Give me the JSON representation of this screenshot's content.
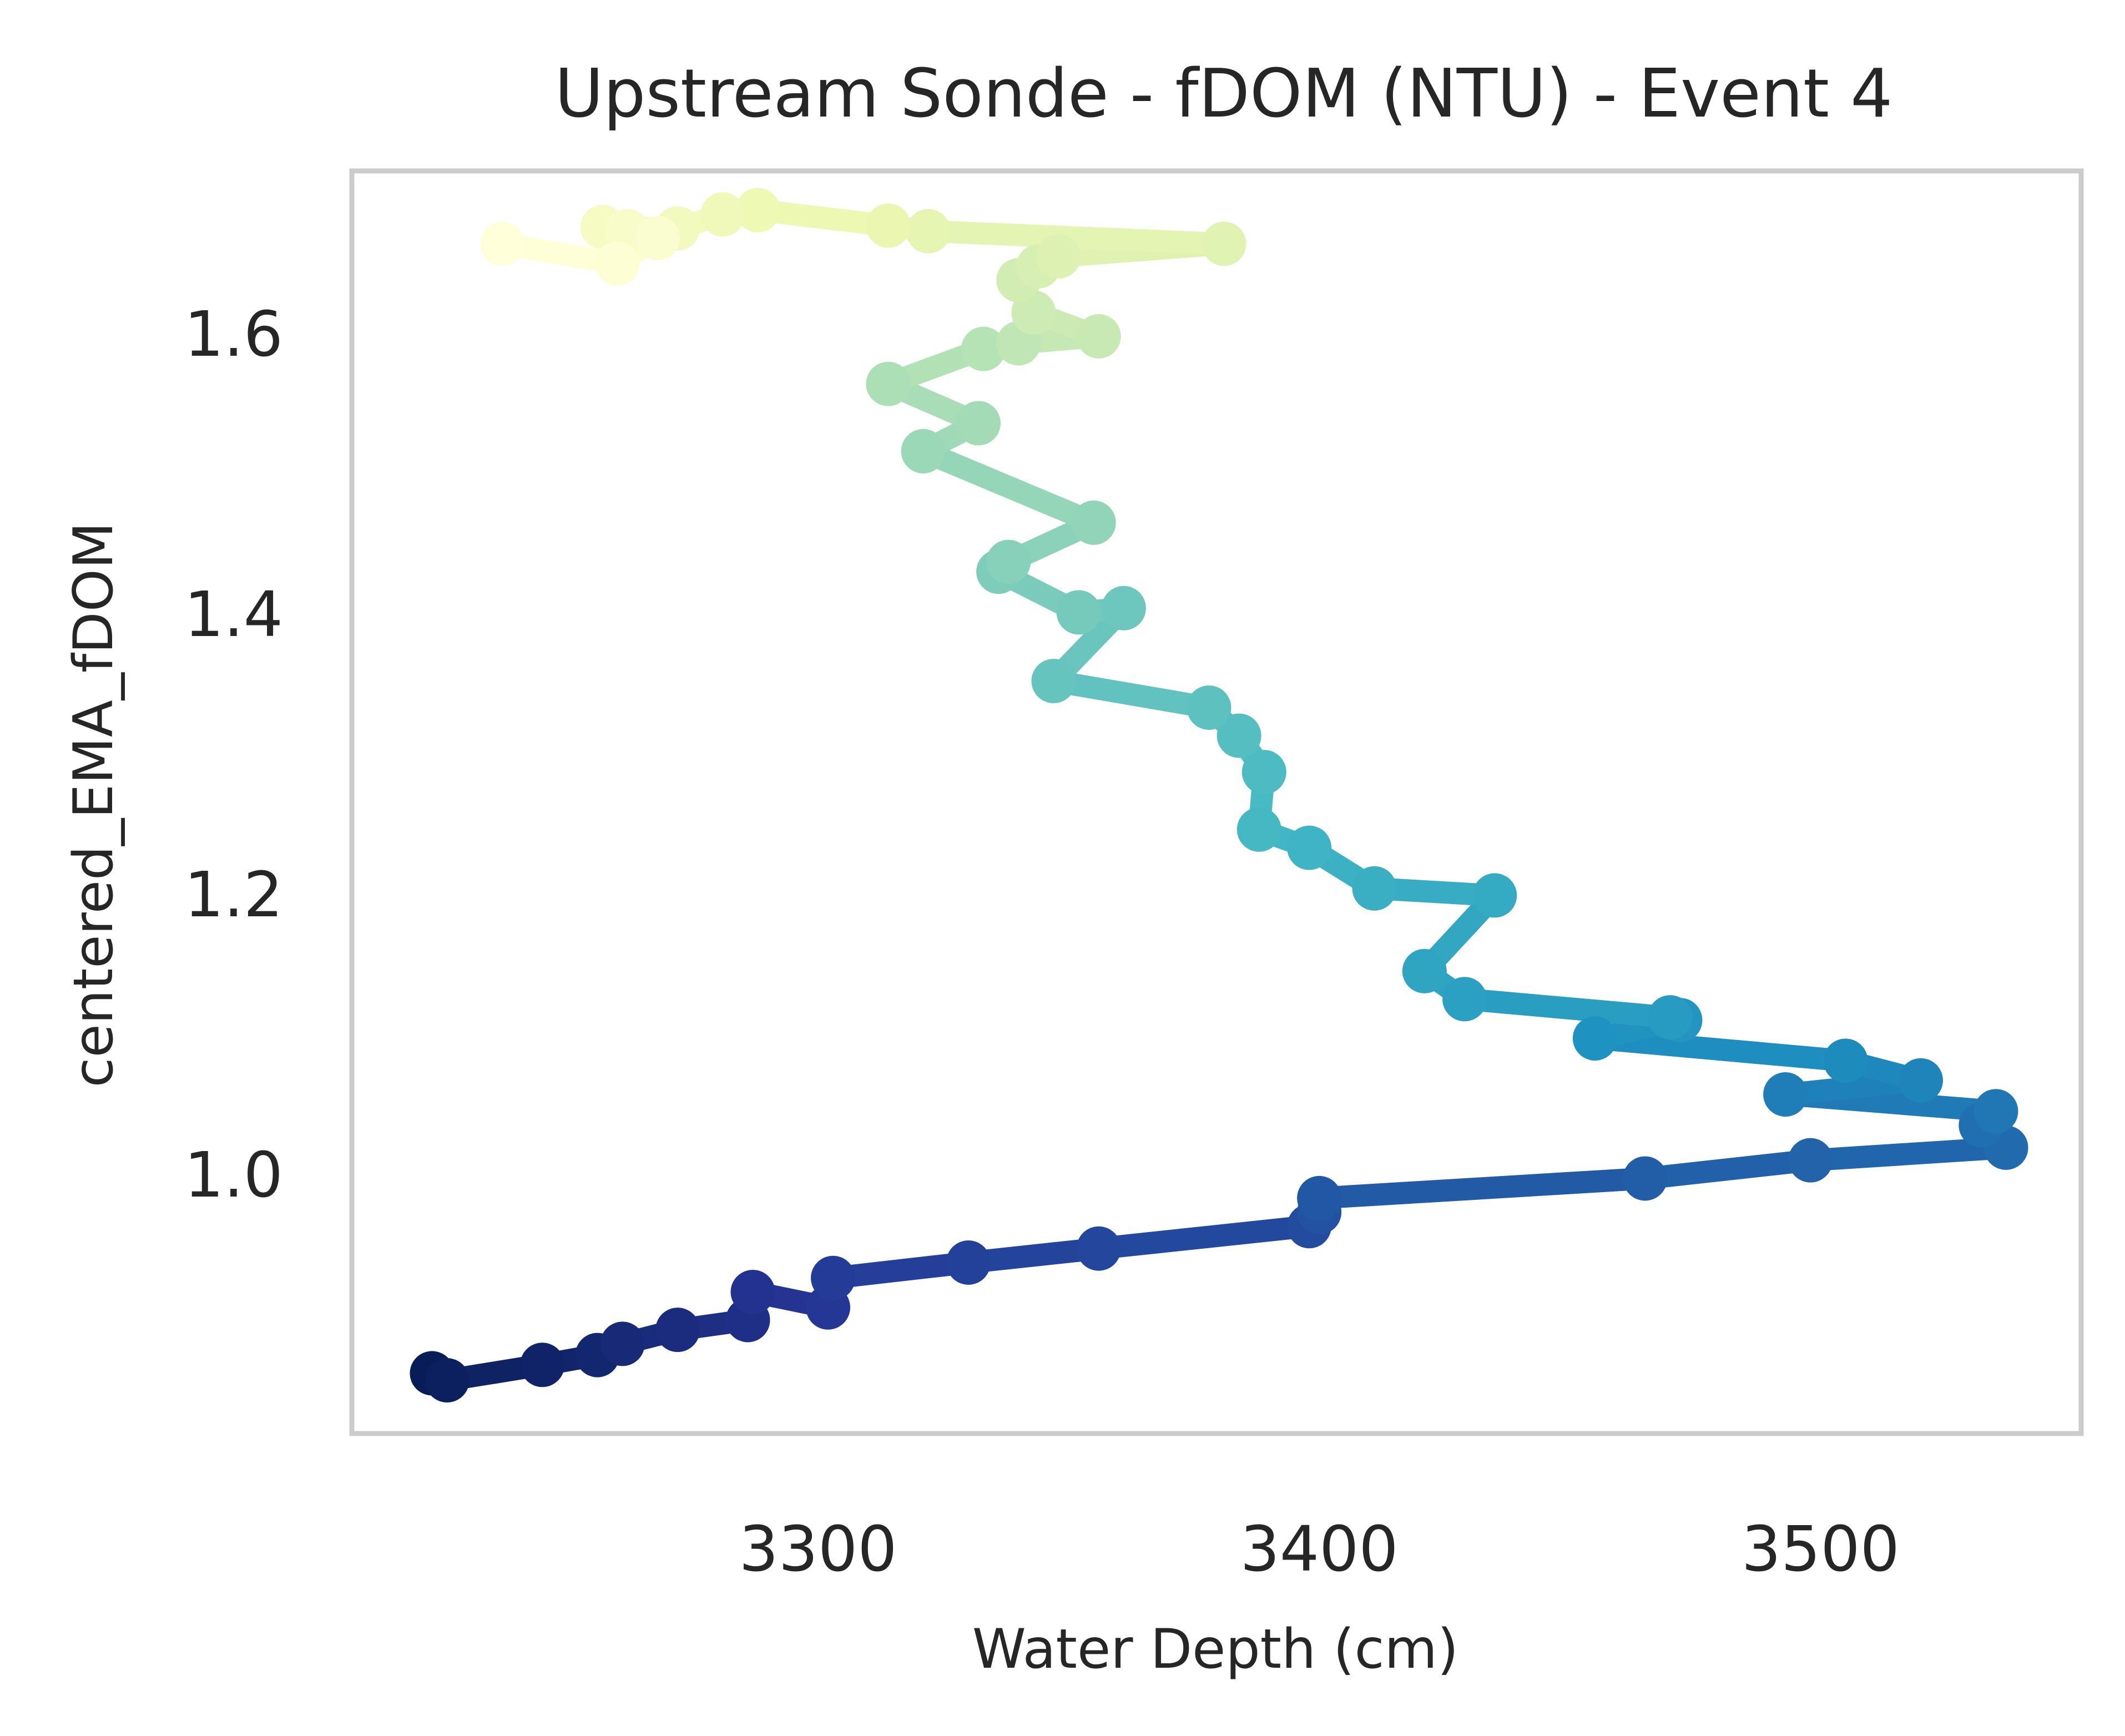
{
  "chart_data": {
    "type": "line",
    "title": "Upstream Sonde - fDOM (NTU) - Event 4",
    "xlabel": "Water Depth (cm)",
    "ylabel": "centered_EMA_fDOM",
    "xlim": [
      3207,
      3552
    ],
    "ylim": [
      0.815,
      1.716
    ],
    "xticks": [
      3300,
      3400,
      3500
    ],
    "yticks": [
      1.0,
      1.2,
      1.4,
      1.6
    ],
    "xtick_labels": [
      "3300",
      "3400",
      "3500"
    ],
    "ytick_labels": [
      "1.0",
      "1.2",
      "1.4",
      "1.6"
    ],
    "grid": false,
    "legend": "none",
    "marker": "circle",
    "colormap": "YlGnBu",
    "color_stops": [
      "#081d58",
      "#253494",
      "#225ea8",
      "#1d91c0",
      "#41b6c4",
      "#7fcdbb",
      "#c7e9b4",
      "#edf8b1",
      "#ffffd9"
    ],
    "series": [
      {
        "x": [
          3223,
          3226,
          3245,
          3256,
          3261,
          3272,
          3286,
          3287,
          3302,
          3303,
          3330,
          3356,
          3398,
          3400,
          3400,
          3465,
          3498,
          3537,
          3532,
          3535,
          3493,
          3520,
          3505,
          3455,
          3472,
          3470,
          3429,
          3421,
          3435,
          3411,
          3398,
          3388,
          3389,
          3384,
          3378,
          3347,
          3361,
          3352,
          3336,
          3338,
          3355,
          3321,
          3332,
          3314,
          3333,
          3340,
          3356,
          3343,
          3340,
          3344,
          3348,
          3381,
          3322,
          3314,
          3288,
          3281,
          3272,
          3257,
          3262,
          3268,
          3260,
          3237
        ],
        "y": [
          0.858,
          0.853,
          0.864,
          0.871,
          0.879,
          0.889,
          0.896,
          0.916,
          0.905,
          0.926,
          0.937,
          0.947,
          0.963,
          0.973,
          0.983,
          0.997,
          1.01,
          1.019,
          1.035,
          1.045,
          1.057,
          1.067,
          1.081,
          1.097,
          1.11,
          1.112,
          1.125,
          1.145,
          1.199,
          1.204,
          1.233,
          1.246,
          1.287,
          1.313,
          1.333,
          1.352,
          1.404,
          1.401,
          1.43,
          1.437,
          1.465,
          1.516,
          1.536,
          1.564,
          1.589,
          1.593,
          1.598,
          1.615,
          1.638,
          1.648,
          1.655,
          1.664,
          1.673,
          1.677,
          1.688,
          1.685,
          1.675,
          1.676,
          1.673,
          1.668,
          1.65,
          1.664
        ]
      }
    ]
  }
}
